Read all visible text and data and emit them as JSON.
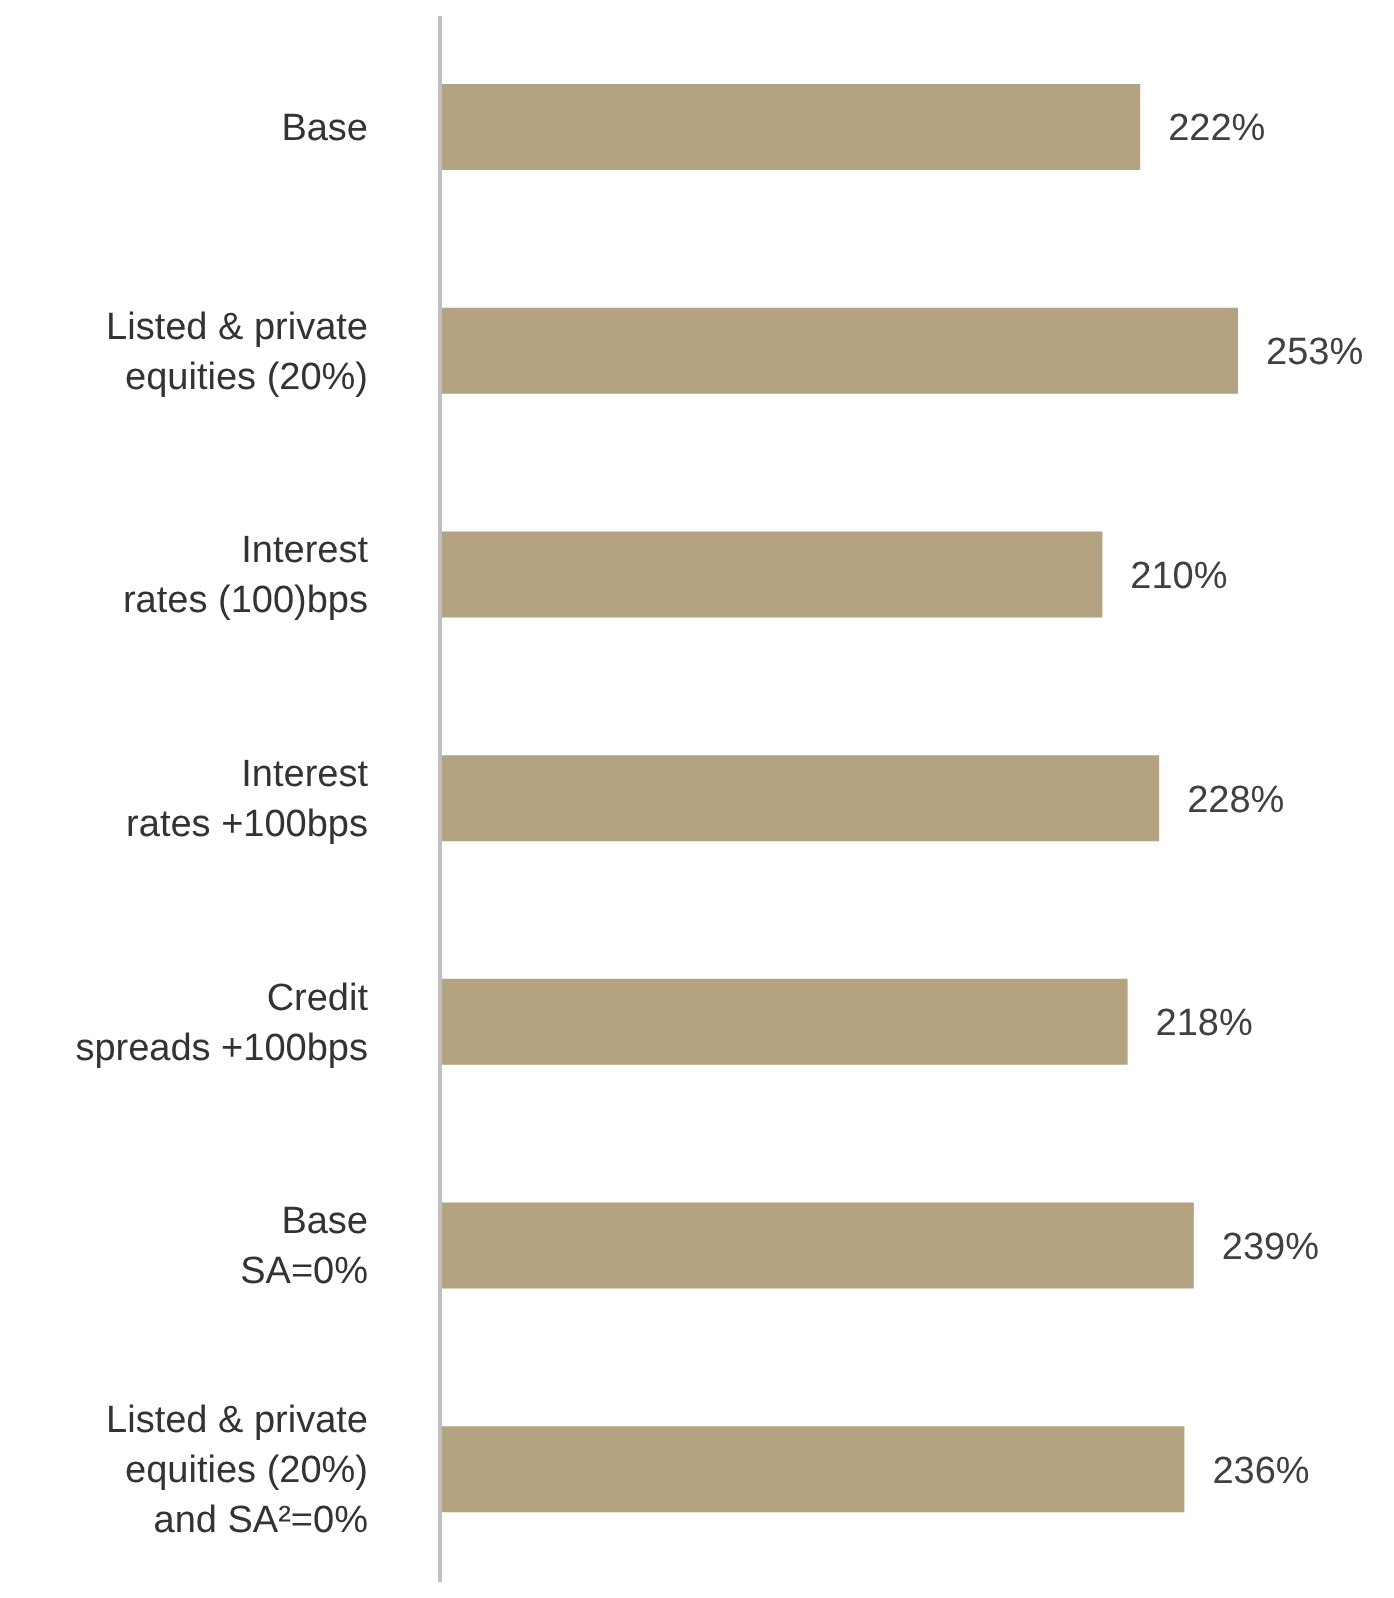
{
  "chart_data": {
    "type": "bar",
    "orientation": "horizontal",
    "categories": [
      "Base",
      "Listed & private\nequities (20%)",
      "Interest\nrates (100)bps",
      "Interest\nrates +100bps",
      "Credit\nspreads +100bps",
      "Base\nSA=0%",
      "Listed & private\nequities (20%)\nand SA²=0%"
    ],
    "values": [
      222,
      253,
      210,
      228,
      218,
      239,
      236
    ],
    "value_labels": [
      "222%",
      "253%",
      "210%",
      "228%",
      "218%",
      "239%",
      "236%"
    ],
    "color": "#b3a380",
    "tick_labels": "y"
  }
}
